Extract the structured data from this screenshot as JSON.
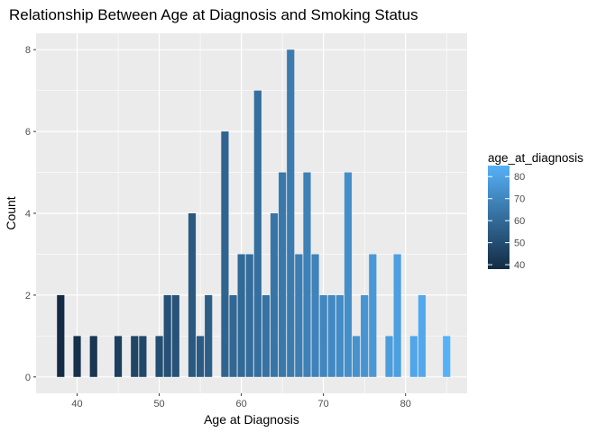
{
  "chart_data": {
    "type": "bar",
    "title": "Relationship Between Age at Diagnosis and Smoking Status",
    "xlabel": "Age at Diagnosis",
    "ylabel": "Count",
    "xlim": [
      35,
      87.5
    ],
    "ylim": [
      -0.4,
      8.4
    ],
    "xticks": [
      40,
      50,
      60,
      70,
      80
    ],
    "yticks": [
      0,
      2,
      4,
      6,
      8
    ],
    "x": [
      38,
      40,
      42,
      45,
      47,
      48,
      50,
      51,
      52,
      54,
      55,
      56,
      58,
      59,
      60,
      61,
      62,
      63,
      64,
      65,
      66,
      67,
      68,
      69,
      70,
      71,
      72,
      73,
      74,
      75,
      76,
      78,
      79,
      81,
      82,
      85
    ],
    "values": [
      2,
      1,
      1,
      1,
      1,
      1,
      1,
      2,
      2,
      4,
      1,
      2,
      6,
      2,
      3,
      3,
      7,
      2,
      4,
      5,
      8,
      3,
      5,
      3,
      2,
      2,
      2,
      5,
      1,
      2,
      3,
      1,
      3,
      1,
      2,
      1
    ],
    "grid": true,
    "legend": {
      "title": "age_at_diagnosis",
      "position": "right",
      "type": "gradient",
      "range": [
        38,
        85
      ],
      "ticks": [
        40,
        50,
        60,
        70,
        80
      ],
      "color_low": "#132B43",
      "color_high": "#56B1F7"
    },
    "colors": {
      "panel": "#EBEBEB",
      "grid": "#FFFFFF"
    }
  }
}
